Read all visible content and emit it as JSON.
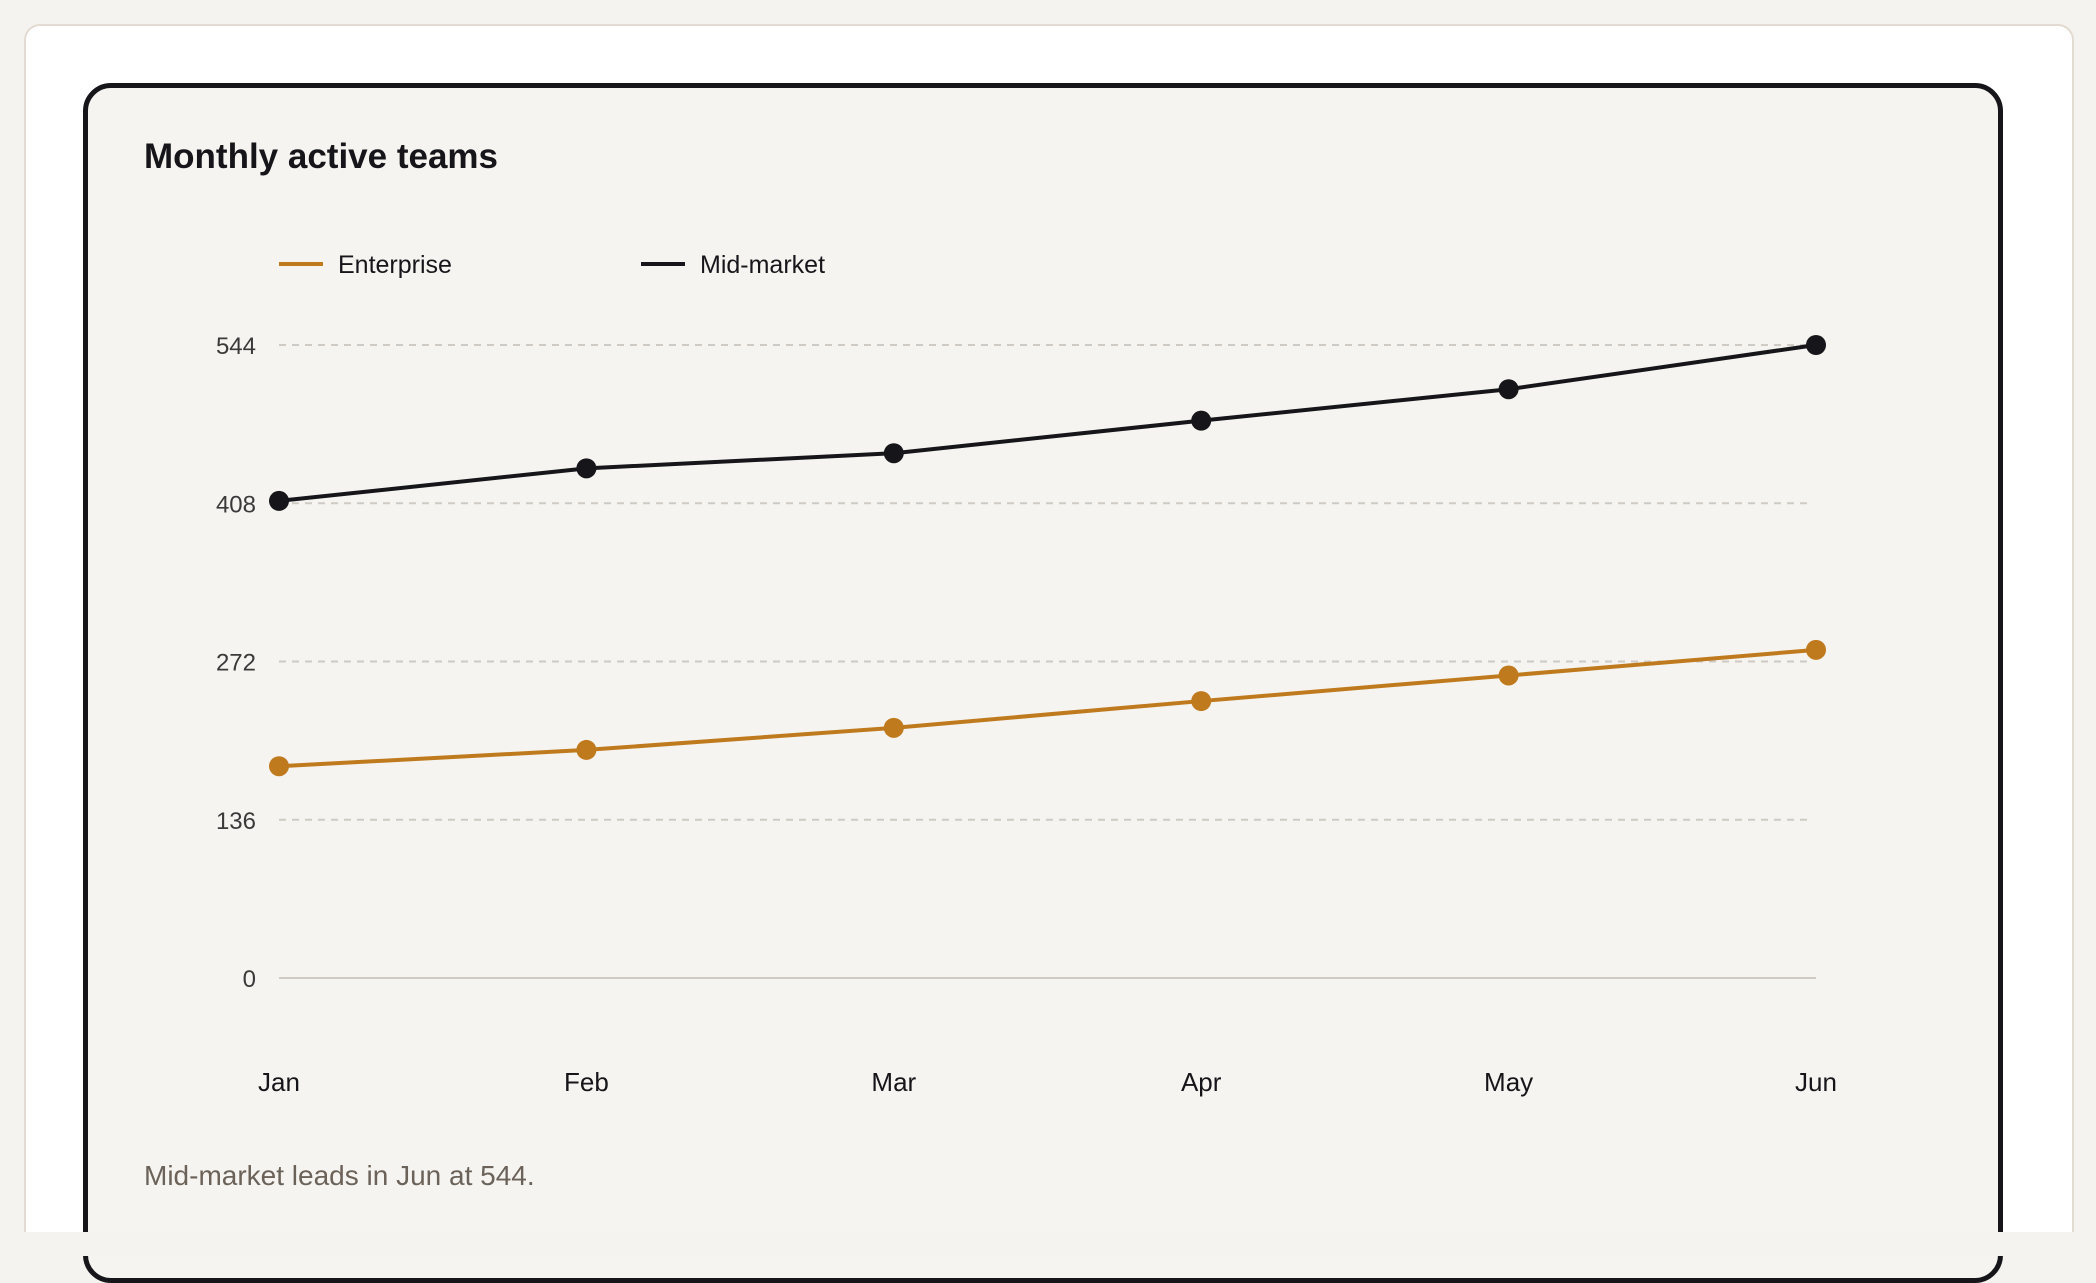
{
  "card": {
    "caption": "Mid-market leads in Jun at 544."
  },
  "chart_data": {
    "type": "line",
    "title": "Monthly active teams",
    "categories": [
      "Jan",
      "Feb",
      "Mar",
      "Apr",
      "May",
      "Jun"
    ],
    "series": [
      {
        "name": "Enterprise",
        "color": "#c07a1e",
        "values": [
          182,
          196,
          215,
          238,
          260,
          282
        ]
      },
      {
        "name": "Mid-market",
        "color": "#16161a",
        "values": [
          410,
          438,
          451,
          479,
          506,
          544
        ]
      }
    ],
    "yticks": [
      0,
      136,
      272,
      408,
      544
    ],
    "ylim": [
      0,
      544
    ],
    "xlabel": "",
    "ylabel": "",
    "grid": true,
    "legend": "top-left",
    "gridline_color": "#cfcac3"
  }
}
